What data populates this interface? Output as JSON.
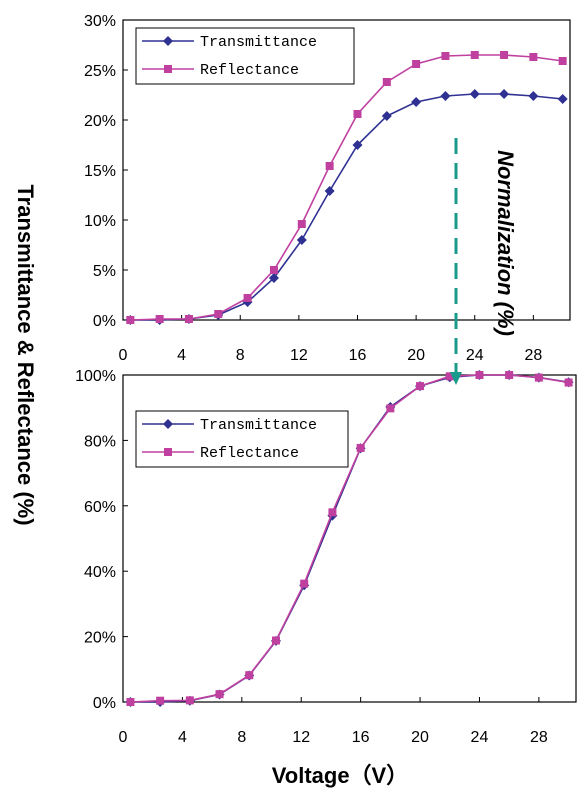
{
  "figure": {
    "ylabel": "Transmittance & Reflectance (%)",
    "xlabel": "Voltage（V）",
    "annotation": "Normalization (%)"
  },
  "colors": {
    "transmittance": "#2e3192",
    "reflectance": "#c040a0",
    "arrow": "#1a9a8a"
  },
  "chart_data": [
    {
      "type": "line",
      "x": [
        0.5,
        2.5,
        4.5,
        6.5,
        8.5,
        10.3,
        12.2,
        14.1,
        16.0,
        18.0,
        20.0,
        22.0,
        24.0,
        26.0,
        28.0,
        30.0
      ],
      "series": [
        {
          "name": "Transmittance",
          "marker": "diamond",
          "values": [
            0.0,
            0.0,
            0.1,
            0.5,
            1.8,
            4.2,
            8.0,
            12.9,
            17.5,
            20.4,
            21.8,
            22.4,
            22.6,
            22.6,
            22.4,
            22.1
          ]
        },
        {
          "name": "Reflectance",
          "marker": "square",
          "values": [
            0.0,
            0.1,
            0.1,
            0.6,
            2.2,
            5.0,
            9.6,
            15.4,
            20.6,
            23.8,
            25.6,
            26.4,
            26.5,
            26.5,
            26.3,
            25.9
          ]
        }
      ],
      "xticks": [
        "0",
        "4",
        "8",
        "12",
        "16",
        "20",
        "24",
        "28"
      ],
      "yticks": [
        "0%",
        "5%",
        "10%",
        "15%",
        "20%",
        "25%",
        "30%"
      ],
      "xlim": [
        0,
        30.5
      ],
      "ylim": [
        0,
        30
      ],
      "legend": "top-left",
      "grid": false
    },
    {
      "type": "line",
      "x": [
        0.5,
        2.5,
        4.5,
        6.5,
        8.5,
        10.3,
        12.2,
        14.1,
        16.0,
        18.0,
        20.0,
        22.0,
        24.0,
        26.0,
        28.0,
        30.0
      ],
      "series": [
        {
          "name": "Transmittance",
          "marker": "diamond",
          "values": [
            0.0,
            0.0,
            0.4,
            2.3,
            8.1,
            18.7,
            35.7,
            57.0,
            77.6,
            90.2,
            96.6,
            99.3,
            100.0,
            100.0,
            99.2,
            97.8
          ]
        },
        {
          "name": "Reflectance",
          "marker": "square",
          "values": [
            0.0,
            0.4,
            0.5,
            2.4,
            8.2,
            18.8,
            36.2,
            58.0,
            77.7,
            89.8,
            96.6,
            99.6,
            100.0,
            100.0,
            99.2,
            97.7
          ]
        }
      ],
      "xticks": [
        "0",
        "4",
        "8",
        "12",
        "16",
        "20",
        "24",
        "28"
      ],
      "yticks": [
        "0%",
        "20%",
        "40%",
        "60%",
        "80%",
        "100%"
      ],
      "xlim": [
        0,
        30.5
      ],
      "ylim": [
        0,
        100
      ],
      "legend": "top-left",
      "grid": false
    }
  ]
}
